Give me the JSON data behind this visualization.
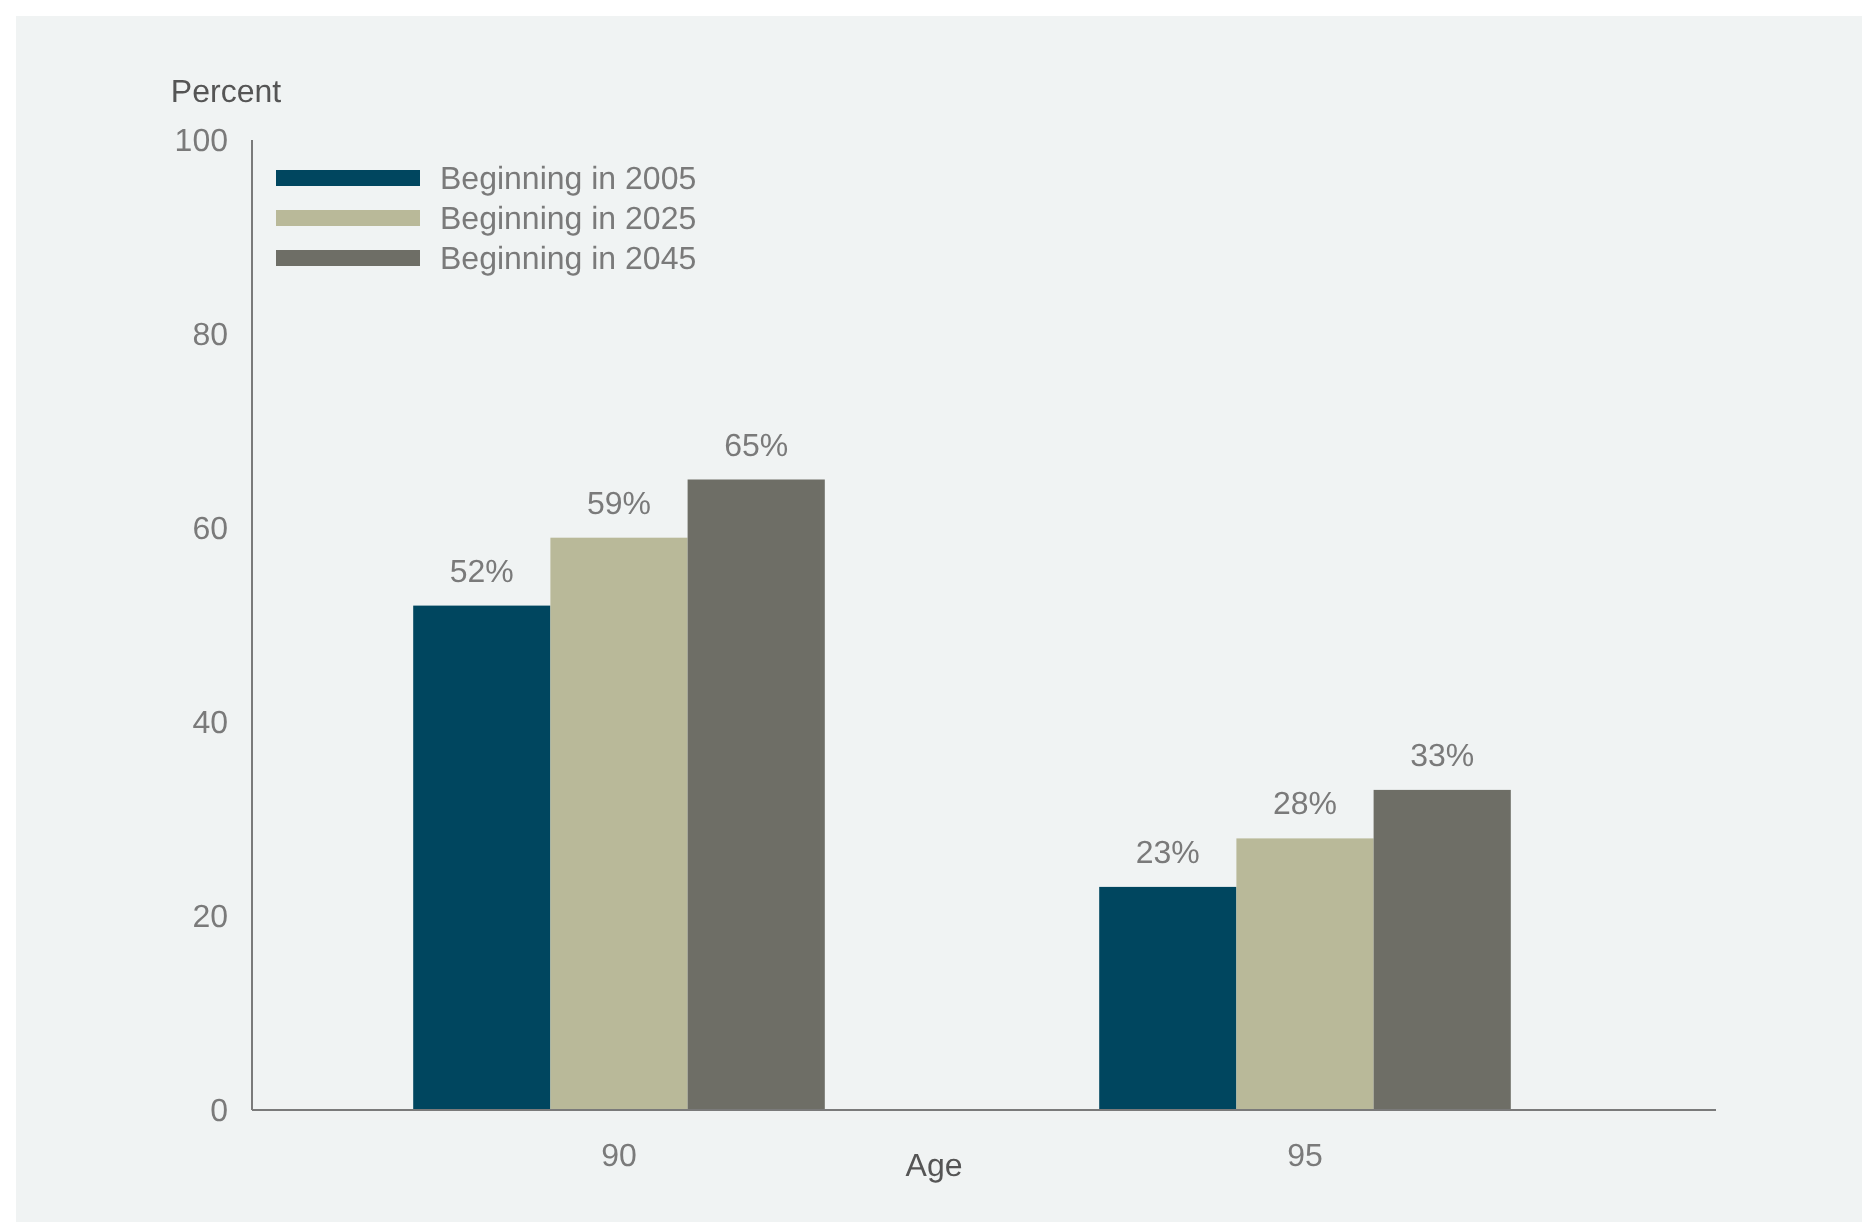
{
  "chart_data": {
    "type": "bar",
    "ylabel": "Percent",
    "xlabel": "Age",
    "categories": [
      "90",
      "95"
    ],
    "series": [
      {
        "name": "Beginning in 2005",
        "color": "#00465f",
        "values": [
          52,
          23
        ],
        "value_labels": [
          "52%",
          "23%"
        ]
      },
      {
        "name": "Beginning in 2025",
        "color": "#b9b999",
        "values": [
          59,
          28
        ],
        "value_labels": [
          "59%",
          "28%"
        ]
      },
      {
        "name": "Beginning in 2045",
        "color": "#6e6e66",
        "values": [
          65,
          33
        ],
        "value_labels": [
          "65%",
          "33%"
        ]
      }
    ],
    "ylim": [
      0,
      100
    ],
    "yticks": [
      0,
      20,
      40,
      60,
      80,
      100
    ],
    "grid": false,
    "legend": "top left"
  }
}
